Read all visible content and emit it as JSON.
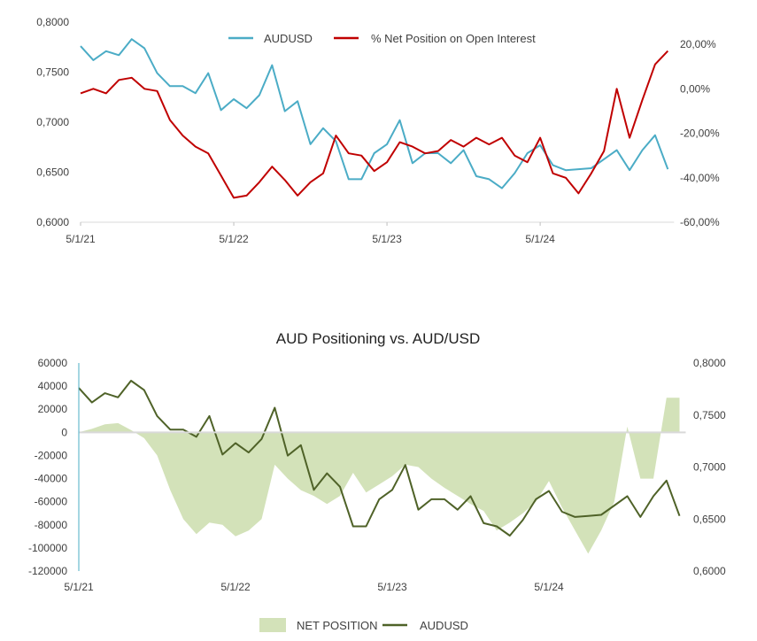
{
  "chart_data": [
    {
      "type": "line",
      "title": "",
      "x": [
        "2021-05",
        "2021-06",
        "2021-07",
        "2021-08",
        "2021-09",
        "2021-10",
        "2021-11",
        "2021-12",
        "2022-01",
        "2022-02",
        "2022-03",
        "2022-04",
        "2022-05",
        "2022-06",
        "2022-07",
        "2022-08",
        "2022-09",
        "2022-10",
        "2022-11",
        "2022-12",
        "2023-01",
        "2023-02",
        "2023-03",
        "2023-04",
        "2023-05",
        "2023-06",
        "2023-07",
        "2023-08",
        "2023-09",
        "2023-10",
        "2023-11",
        "2023-12",
        "2024-01",
        "2024-02",
        "2024-03",
        "2024-04",
        "2024-05",
        "2024-06",
        "2024-07",
        "2024-08",
        "2024-09",
        "2024-10",
        "2024-11",
        "2024-12",
        "2025-01",
        "2025-02",
        "2025-03"
      ],
      "x_ticks": [
        "5/1/21",
        "5/1/22",
        "5/1/23",
        "5/1/24"
      ],
      "y_left": {
        "ylim": [
          0.6,
          0.8
        ],
        "ticks": [
          "0,6000",
          "0,6500",
          "0,7000",
          "0,7500",
          "0,8000"
        ]
      },
      "y_right": {
        "ylim": [
          -60,
          30
        ],
        "ticks": [
          "-60,00%",
          "-40,00%",
          "-20,00%",
          "0,00%",
          "20,00%"
        ]
      },
      "legend_position": "top",
      "grid": false,
      "series": [
        {
          "name": "AUDUSD",
          "axis": "left",
          "color": "#4BACC6",
          "values": [
            0.776,
            0.762,
            0.771,
            0.767,
            0.783,
            0.774,
            0.749,
            0.736,
            0.736,
            0.729,
            0.749,
            0.712,
            0.723,
            0.714,
            0.727,
            0.757,
            0.711,
            0.721,
            0.678,
            0.694,
            0.681,
            0.643,
            0.643,
            0.669,
            0.678,
            0.702,
            0.659,
            0.669,
            0.669,
            0.659,
            0.672,
            0.646,
            0.643,
            0.634,
            0.649,
            0.669,
            0.677,
            0.657,
            0.652,
            0.653,
            0.654,
            0.663,
            0.672,
            0.652,
            0.672,
            0.687,
            0.653
          ]
        },
        {
          "name": "% Net Position on Open Interest",
          "axis": "right",
          "color": "#C00000",
          "values": [
            -2,
            0,
            -2,
            4,
            5,
            0,
            -1,
            -14,
            -21,
            -26,
            -29,
            -39,
            -49,
            -48,
            -42,
            -35,
            -41,
            -48,
            -42,
            -38,
            -21,
            -29,
            -30,
            -37,
            -33,
            -24,
            -26,
            -29,
            -28,
            -23,
            -26,
            -22,
            -25,
            -22,
            -30,
            -33,
            -22,
            -38,
            -40,
            -47,
            -38,
            -28,
            0,
            -22,
            -5,
            11,
            17
          ]
        }
      ]
    },
    {
      "type": "area",
      "title": "AUD Positioning vs. AUD/USD",
      "x": [
        "2021-05",
        "2021-06",
        "2021-07",
        "2021-08",
        "2021-09",
        "2021-10",
        "2021-11",
        "2021-12",
        "2022-01",
        "2022-02",
        "2022-03",
        "2022-04",
        "2022-05",
        "2022-06",
        "2022-07",
        "2022-08",
        "2022-09",
        "2022-10",
        "2022-11",
        "2022-12",
        "2023-01",
        "2023-02",
        "2023-03",
        "2023-04",
        "2023-05",
        "2023-06",
        "2023-07",
        "2023-08",
        "2023-09",
        "2023-10",
        "2023-11",
        "2023-12",
        "2024-01",
        "2024-02",
        "2024-03",
        "2024-04",
        "2024-05",
        "2024-06",
        "2024-07",
        "2024-08",
        "2024-09",
        "2024-10",
        "2024-11",
        "2024-12",
        "2025-01",
        "2025-02",
        "2025-03"
      ],
      "x_ticks": [
        "5/1/21",
        "5/1/22",
        "5/1/23",
        "5/1/24"
      ],
      "y_left": {
        "ylim": [
          -120000,
          60000
        ],
        "ticks": [
          "-120000",
          "-100000",
          "-80000",
          "-60000",
          "-40000",
          "-20000",
          "0",
          "20000",
          "40000",
          "60000"
        ]
      },
      "y_right": {
        "ylim": [
          0.6,
          0.8
        ],
        "ticks": [
          "0,6000",
          "0,6500",
          "0,7000",
          "0,7500",
          "0,8000"
        ]
      },
      "legend_position": "bottom",
      "grid": false,
      "series": [
        {
          "name": "NET POSITION",
          "axis": "left",
          "kind": "area",
          "color": "#D3E2B9",
          "values": [
            0,
            3000,
            7000,
            8000,
            2000,
            -5000,
            -20000,
            -50000,
            -75000,
            -88000,
            -78000,
            -80000,
            -90000,
            -85000,
            -75000,
            -28000,
            -40000,
            -50000,
            -55000,
            -62000,
            -55000,
            -35000,
            -52000,
            -45000,
            -38000,
            -28000,
            -30000,
            -40000,
            -48000,
            -55000,
            -62000,
            -68000,
            -85000,
            -78000,
            -70000,
            -60000,
            -42000,
            -65000,
            -85000,
            -105000,
            -85000,
            -60000,
            5000,
            -40000,
            -40000,
            30000,
            30000
          ]
        },
        {
          "name": "AUDUSD",
          "axis": "right",
          "kind": "line",
          "color": "#4F6228",
          "values": [
            0.776,
            0.762,
            0.771,
            0.767,
            0.783,
            0.774,
            0.749,
            0.736,
            0.736,
            0.729,
            0.749,
            0.712,
            0.723,
            0.714,
            0.727,
            0.757,
            0.711,
            0.721,
            0.678,
            0.694,
            0.681,
            0.643,
            0.643,
            0.669,
            0.678,
            0.702,
            0.659,
            0.669,
            0.669,
            0.659,
            0.672,
            0.646,
            0.643,
            0.634,
            0.649,
            0.669,
            0.677,
            0.657,
            0.652,
            0.653,
            0.654,
            0.663,
            0.672,
            0.652,
            0.672,
            0.687,
            0.653
          ]
        }
      ]
    }
  ]
}
